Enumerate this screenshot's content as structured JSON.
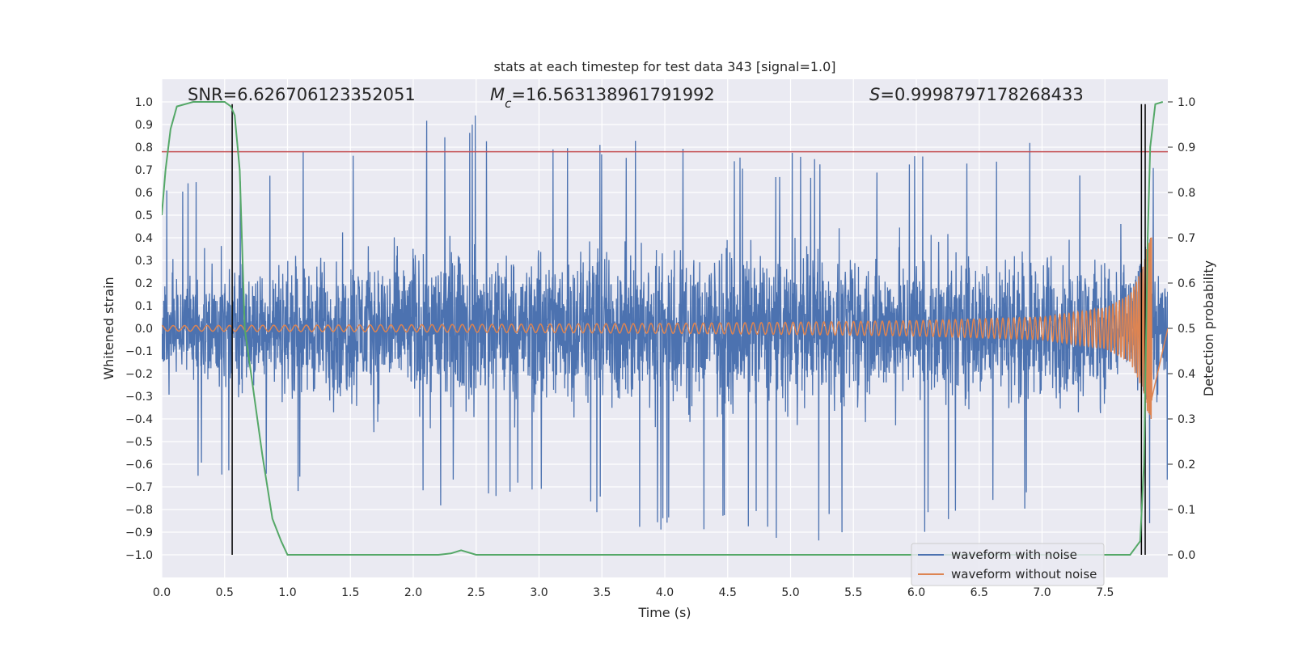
{
  "chart_data": {
    "type": "line",
    "title": "stats at each timestep for test data 343 [signal=1.0]",
    "xlabel": "Time (s)",
    "ylabel": "Whitened strain",
    "ylabel_right": "Detection probability",
    "xlim": [
      0.0,
      8.0
    ],
    "ylim": [
      -1.1,
      1.1
    ],
    "ylim_right": [
      -0.05,
      1.05
    ],
    "x_ticks": [
      0.0,
      0.5,
      1.0,
      1.5,
      2.0,
      2.5,
      3.0,
      3.5,
      4.0,
      4.5,
      5.0,
      5.5,
      6.0,
      6.5,
      7.0,
      7.5
    ],
    "x_tick_labels": [
      "0.0",
      "0.5",
      "1.0",
      "1.5",
      "2.0",
      "2.5",
      "3.0",
      "3.5",
      "4.0",
      "4.5",
      "5.0",
      "5.5",
      "6.0",
      "6.5",
      "7.0",
      "7.5"
    ],
    "y_ticks": [
      1.0,
      0.9,
      0.8,
      0.7,
      0.6,
      0.5,
      0.4,
      0.3,
      0.2,
      0.1,
      0.0,
      -0.1,
      -0.2,
      -0.3,
      -0.4,
      -0.5,
      -0.6,
      -0.7,
      -0.8,
      -0.9,
      -1.0
    ],
    "y_tick_labels": [
      "1.0",
      "0.9",
      "0.8",
      "0.7",
      "0.6",
      "0.5",
      "0.4",
      "0.3",
      "0.2",
      "0.1",
      "0.0",
      "−0.1",
      "−0.2",
      "−0.3",
      "−0.4",
      "−0.5",
      "−0.6",
      "−0.7",
      "−0.8",
      "−0.9",
      "−1.0"
    ],
    "y_right_ticks": [
      1.0,
      0.9,
      0.8,
      0.7,
      0.6,
      0.5,
      0.4,
      0.3,
      0.2,
      0.1,
      0.0
    ],
    "y_right_tick_labels": [
      "1.0",
      "0.9",
      "0.8",
      "0.7",
      "0.6",
      "0.5",
      "0.4",
      "0.3",
      "0.2",
      "0.1",
      "0.0"
    ],
    "annotations": {
      "snr": "SNR=6.626706123352051",
      "mc_symbol": "M",
      "mc_sub": "c",
      "mc_value": "=16.563138961791992",
      "s_symbol": "S",
      "s_value": "=0.9998797178268433"
    },
    "threshold_line": {
      "y": 0.78,
      "color": "#c44e52"
    },
    "vertical_lines": [
      0.56,
      7.79,
      7.82
    ],
    "series": [
      {
        "name": "waveform with noise",
        "color": "#4c72b0",
        "description": "noisy whitened strain, range approx -0.93 to 0.98",
        "envelope_x": [
          0.0,
          1.0,
          2.0,
          3.0,
          4.0,
          5.0,
          6.0,
          7.0,
          7.6,
          7.85,
          8.0
        ],
        "envelope_max": [
          0.62,
          0.76,
          0.98,
          0.91,
          0.81,
          0.78,
          0.77,
          0.83,
          0.72,
          0.79,
          0.62
        ],
        "envelope_min": [
          -0.62,
          -0.74,
          -0.78,
          -0.79,
          -0.93,
          -0.95,
          -0.91,
          -0.81,
          -0.88,
          -0.95,
          -0.66
        ]
      },
      {
        "name": "waveform without noise",
        "color": "#dd8452",
        "description": "chirp signal, amplitude grows toward merger",
        "amplitude_x": [
          0.0,
          1.0,
          2.0,
          3.0,
          4.0,
          5.0,
          6.0,
          7.0,
          7.5,
          7.7,
          7.8,
          7.87
        ],
        "amplitude": [
          0.012,
          0.014,
          0.016,
          0.019,
          0.022,
          0.027,
          0.034,
          0.05,
          0.09,
          0.15,
          0.27,
          0.45
        ]
      },
      {
        "name": "detection probability",
        "color": "#55a868",
        "axis": "right",
        "x": [
          0.0,
          0.03,
          0.07,
          0.12,
          0.25,
          0.4,
          0.5,
          0.55,
          0.58,
          0.62,
          0.66,
          0.72,
          0.8,
          0.88,
          0.95,
          1.0,
          2.2,
          2.3,
          2.38,
          2.5,
          7.7,
          7.78,
          7.81,
          7.84,
          7.86,
          7.9,
          7.96
        ],
        "y": [
          0.75,
          0.85,
          0.94,
          0.99,
          1.0,
          1.0,
          1.0,
          0.99,
          0.97,
          0.85,
          0.5,
          0.38,
          0.22,
          0.08,
          0.03,
          0.0,
          0.0,
          0.003,
          0.01,
          0.0,
          0.0,
          0.03,
          0.2,
          0.7,
          0.9,
          0.995,
          1.0
        ]
      }
    ],
    "legend": {
      "position": "lower-right",
      "entries": [
        {
          "label": "waveform with noise",
          "color": "#4c72b0"
        },
        {
          "label": "waveform without noise",
          "color": "#dd8452"
        }
      ]
    },
    "colors": {
      "plot_bg": "#eaeaf2",
      "grid": "#ffffff",
      "vertical_line": "#000000"
    }
  }
}
